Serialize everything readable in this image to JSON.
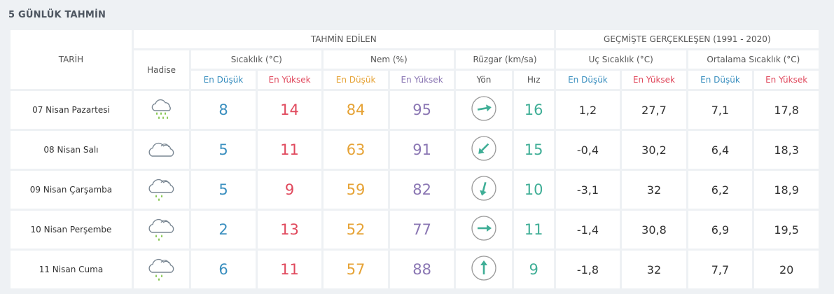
{
  "title": "5 GÜNLÜK TAHMİN",
  "headers": {
    "tarih": "TARİH",
    "tahmin_edilen": "TAHMİN EDİLEN",
    "gecmiste": "GEÇMİŞTE GERÇEKLEŞEN (1991 - 2020)",
    "hadise": "Hadise",
    "sicaklik": "Sıcaklık (°C)",
    "nem": "Nem (%)",
    "ruzgar": "Rüzgar (km/sa)",
    "uc_sicaklik": "Uç Sıcaklık (°C)",
    "ort_sicaklik": "Ortalama Sıcaklık (°C)",
    "en_dusuk": "En Düşük",
    "en_yuksek": "En Yüksek",
    "yon": "Yön",
    "hiz": "Hız"
  },
  "colors": {
    "blue": "#3a8fbf",
    "red": "#e0495d",
    "orange": "#e6a336",
    "purple": "#8a76b3",
    "teal": "#3fae96",
    "rain": "#7cc242"
  },
  "rows": [
    {
      "date": "07 Nisan Pazartesi",
      "icon": "heavy-rain-icon",
      "temp_min": "8",
      "temp_max": "14",
      "hum_min": "84",
      "hum_max": "95",
      "wind_dir_icon": "arrow-east-icon",
      "wind_angle_deg": 80,
      "wind_speed": "16",
      "rec_min": "1,2",
      "rec_max": "27,7",
      "avg_min": "7,1",
      "avg_max": "17,8"
    },
    {
      "date": "08 Nisan Salı",
      "icon": "cloud-icon",
      "temp_min": "5",
      "temp_max": "11",
      "hum_min": "63",
      "hum_max": "91",
      "wind_dir_icon": "arrow-southwest-icon",
      "wind_angle_deg": 225,
      "wind_speed": "15",
      "rec_min": "-0,4",
      "rec_max": "30,2",
      "avg_min": "6,4",
      "avg_max": "18,3"
    },
    {
      "date": "09 Nisan Çarşamba",
      "icon": "light-rain-icon",
      "temp_min": "5",
      "temp_max": "9",
      "hum_min": "59",
      "hum_max": "82",
      "wind_dir_icon": "arrow-south-icon",
      "wind_angle_deg": 195,
      "wind_speed": "10",
      "rec_min": "-3,1",
      "rec_max": "32",
      "avg_min": "6,2",
      "avg_max": "18,9"
    },
    {
      "date": "10 Nisan Perşembe",
      "icon": "light-rain-icon",
      "temp_min": "2",
      "temp_max": "13",
      "hum_min": "52",
      "hum_max": "77",
      "wind_dir_icon": "arrow-east-icon",
      "wind_angle_deg": 90,
      "wind_speed": "11",
      "rec_min": "-1,4",
      "rec_max": "30,8",
      "avg_min": "6,9",
      "avg_max": "19,5"
    },
    {
      "date": "11 Nisan Cuma",
      "icon": "light-rain-icon",
      "temp_min": "6",
      "temp_max": "11",
      "hum_min": "57",
      "hum_max": "88",
      "wind_dir_icon": "arrow-north-icon",
      "wind_angle_deg": 0,
      "wind_speed": "9",
      "rec_min": "-1,8",
      "rec_max": "32",
      "avg_min": "7,7",
      "avg_max": "20"
    }
  ]
}
